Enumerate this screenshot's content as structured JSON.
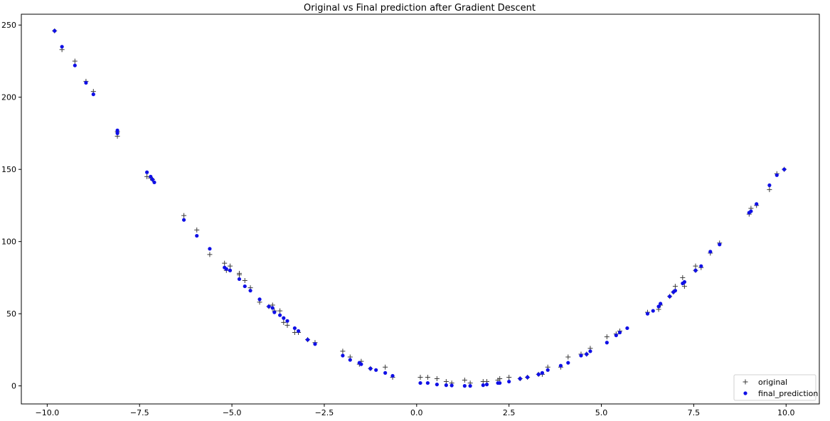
{
  "chart_data": {
    "type": "scatter",
    "title": "Original vs Final prediction after Gradient Descent",
    "xlabel": "",
    "ylabel": "",
    "xlim": [
      -10.7,
      10.9
    ],
    "ylim": [
      -12.5,
      257.5
    ],
    "xticks": [
      -10.0,
      -7.5,
      -5.0,
      -2.5,
      0.0,
      2.5,
      5.0,
      7.5,
      10.0
    ],
    "xtick_labels": [
      "−10.0",
      "−7.5",
      "−5.0",
      "−2.5",
      "0.0",
      "2.5",
      "5.0",
      "7.5",
      "10.0"
    ],
    "yticks": [
      0,
      50,
      100,
      150,
      200,
      250
    ],
    "ytick_labels": [
      "0",
      "50",
      "100",
      "150",
      "200",
      "250"
    ],
    "grid": false,
    "legend": "lower-right",
    "series": [
      {
        "name": "original",
        "marker": "plus",
        "color": "#3a3a3a",
        "points": [
          [
            -9.8,
            246
          ],
          [
            -9.6,
            233
          ],
          [
            -9.25,
            225
          ],
          [
            -8.95,
            211
          ],
          [
            -8.75,
            204
          ],
          [
            -8.1,
            176
          ],
          [
            -8.1,
            173
          ],
          [
            -7.3,
            145
          ],
          [
            -7.2,
            144
          ],
          [
            -7.15,
            143
          ],
          [
            -6.3,
            118
          ],
          [
            -5.95,
            108
          ],
          [
            -5.6,
            91
          ],
          [
            -5.2,
            85
          ],
          [
            -5.15,
            80
          ],
          [
            -5.05,
            83
          ],
          [
            -4.8,
            78
          ],
          [
            -4.8,
            77
          ],
          [
            -4.65,
            73
          ],
          [
            -4.5,
            68
          ],
          [
            -4.25,
            58
          ],
          [
            -4.0,
            55
          ],
          [
            -3.9,
            56
          ],
          [
            -3.85,
            52
          ],
          [
            -3.7,
            52
          ],
          [
            -3.6,
            44
          ],
          [
            -3.5,
            42
          ],
          [
            -3.3,
            37
          ],
          [
            -3.2,
            37
          ],
          [
            -2.95,
            32
          ],
          [
            -2.75,
            30
          ],
          [
            -2.0,
            24
          ],
          [
            -1.8,
            20
          ],
          [
            -1.55,
            15
          ],
          [
            -1.5,
            17
          ],
          [
            -1.25,
            12
          ],
          [
            -0.85,
            13
          ],
          [
            -0.65,
            6
          ],
          [
            0.1,
            6
          ],
          [
            0.3,
            6
          ],
          [
            0.55,
            5
          ],
          [
            0.8,
            3
          ],
          [
            0.95,
            2
          ],
          [
            1.3,
            4
          ],
          [
            1.45,
            2
          ],
          [
            1.8,
            3
          ],
          [
            1.9,
            3
          ],
          [
            2.2,
            4
          ],
          [
            2.25,
            5
          ],
          [
            2.5,
            6
          ],
          [
            2.8,
            5
          ],
          [
            3.0,
            6
          ],
          [
            3.3,
            8
          ],
          [
            3.4,
            8
          ],
          [
            3.55,
            13
          ],
          [
            3.9,
            13
          ],
          [
            4.1,
            20
          ],
          [
            4.45,
            22
          ],
          [
            4.6,
            22
          ],
          [
            4.7,
            26
          ],
          [
            5.15,
            34
          ],
          [
            5.4,
            36
          ],
          [
            5.5,
            38
          ],
          [
            6.25,
            51
          ],
          [
            6.55,
            53
          ],
          [
            6.6,
            56
          ],
          [
            6.85,
            62
          ],
          [
            6.95,
            65
          ],
          [
            7.0,
            69
          ],
          [
            7.2,
            75
          ],
          [
            7.25,
            69
          ],
          [
            7.55,
            80
          ],
          [
            7.55,
            83
          ],
          [
            7.7,
            82
          ],
          [
            7.95,
            92
          ],
          [
            8.2,
            99
          ],
          [
            9.0,
            119
          ],
          [
            9.05,
            123
          ],
          [
            9.2,
            125
          ],
          [
            9.55,
            136
          ],
          [
            9.75,
            147
          ],
          [
            9.95,
            150
          ]
        ]
      },
      {
        "name": "final_prediction",
        "marker": "dot",
        "color": "#1010e6",
        "points": [
          [
            -9.8,
            246
          ],
          [
            -9.6,
            235
          ],
          [
            -9.25,
            222
          ],
          [
            -8.95,
            210
          ],
          [
            -8.75,
            202
          ],
          [
            -8.1,
            177
          ],
          [
            -8.1,
            175
          ],
          [
            -7.3,
            148
          ],
          [
            -7.2,
            145
          ],
          [
            -7.15,
            143
          ],
          [
            -7.1,
            141
          ],
          [
            -6.3,
            115
          ],
          [
            -5.95,
            104
          ],
          [
            -5.6,
            95
          ],
          [
            -5.2,
            82
          ],
          [
            -5.15,
            81
          ],
          [
            -5.05,
            80
          ],
          [
            -4.8,
            74
          ],
          [
            -4.65,
            69
          ],
          [
            -4.5,
            66
          ],
          [
            -4.25,
            60
          ],
          [
            -4.0,
            55
          ],
          [
            -3.9,
            54
          ],
          [
            -3.85,
            51
          ],
          [
            -3.7,
            49
          ],
          [
            -3.6,
            47
          ],
          [
            -3.5,
            45
          ],
          [
            -3.3,
            40
          ],
          [
            -3.2,
            38
          ],
          [
            -2.95,
            32
          ],
          [
            -2.75,
            29
          ],
          [
            -2.0,
            21
          ],
          [
            -1.8,
            18
          ],
          [
            -1.55,
            16
          ],
          [
            -1.5,
            15
          ],
          [
            -1.25,
            12
          ],
          [
            -1.1,
            11
          ],
          [
            -0.85,
            9
          ],
          [
            -0.65,
            7
          ],
          [
            0.1,
            2
          ],
          [
            0.3,
            2
          ],
          [
            0.55,
            1
          ],
          [
            0.8,
            0.5
          ],
          [
            0.95,
            0.3
          ],
          [
            1.3,
            0
          ],
          [
            1.45,
            0
          ],
          [
            1.8,
            0.5
          ],
          [
            1.9,
            1
          ],
          [
            2.2,
            2
          ],
          [
            2.25,
            2
          ],
          [
            2.5,
            3
          ],
          [
            2.8,
            5
          ],
          [
            3.0,
            6
          ],
          [
            3.3,
            8
          ],
          [
            3.4,
            9
          ],
          [
            3.55,
            11
          ],
          [
            3.9,
            14
          ],
          [
            4.1,
            16
          ],
          [
            4.45,
            21
          ],
          [
            4.6,
            22
          ],
          [
            4.7,
            24
          ],
          [
            5.15,
            30
          ],
          [
            5.4,
            35
          ],
          [
            5.5,
            37
          ],
          [
            5.7,
            40
          ],
          [
            6.25,
            50
          ],
          [
            6.4,
            52
          ],
          [
            6.55,
            55
          ],
          [
            6.6,
            57
          ],
          [
            6.85,
            62
          ],
          [
            6.95,
            65
          ],
          [
            7.0,
            66
          ],
          [
            7.2,
            71
          ],
          [
            7.25,
            72
          ],
          [
            7.55,
            80
          ],
          [
            7.7,
            83
          ],
          [
            7.95,
            93
          ],
          [
            8.2,
            98
          ],
          [
            9.0,
            120
          ],
          [
            9.05,
            121
          ],
          [
            9.2,
            126
          ],
          [
            9.55,
            139
          ],
          [
            9.75,
            146
          ],
          [
            9.95,
            150
          ]
        ]
      }
    ]
  }
}
